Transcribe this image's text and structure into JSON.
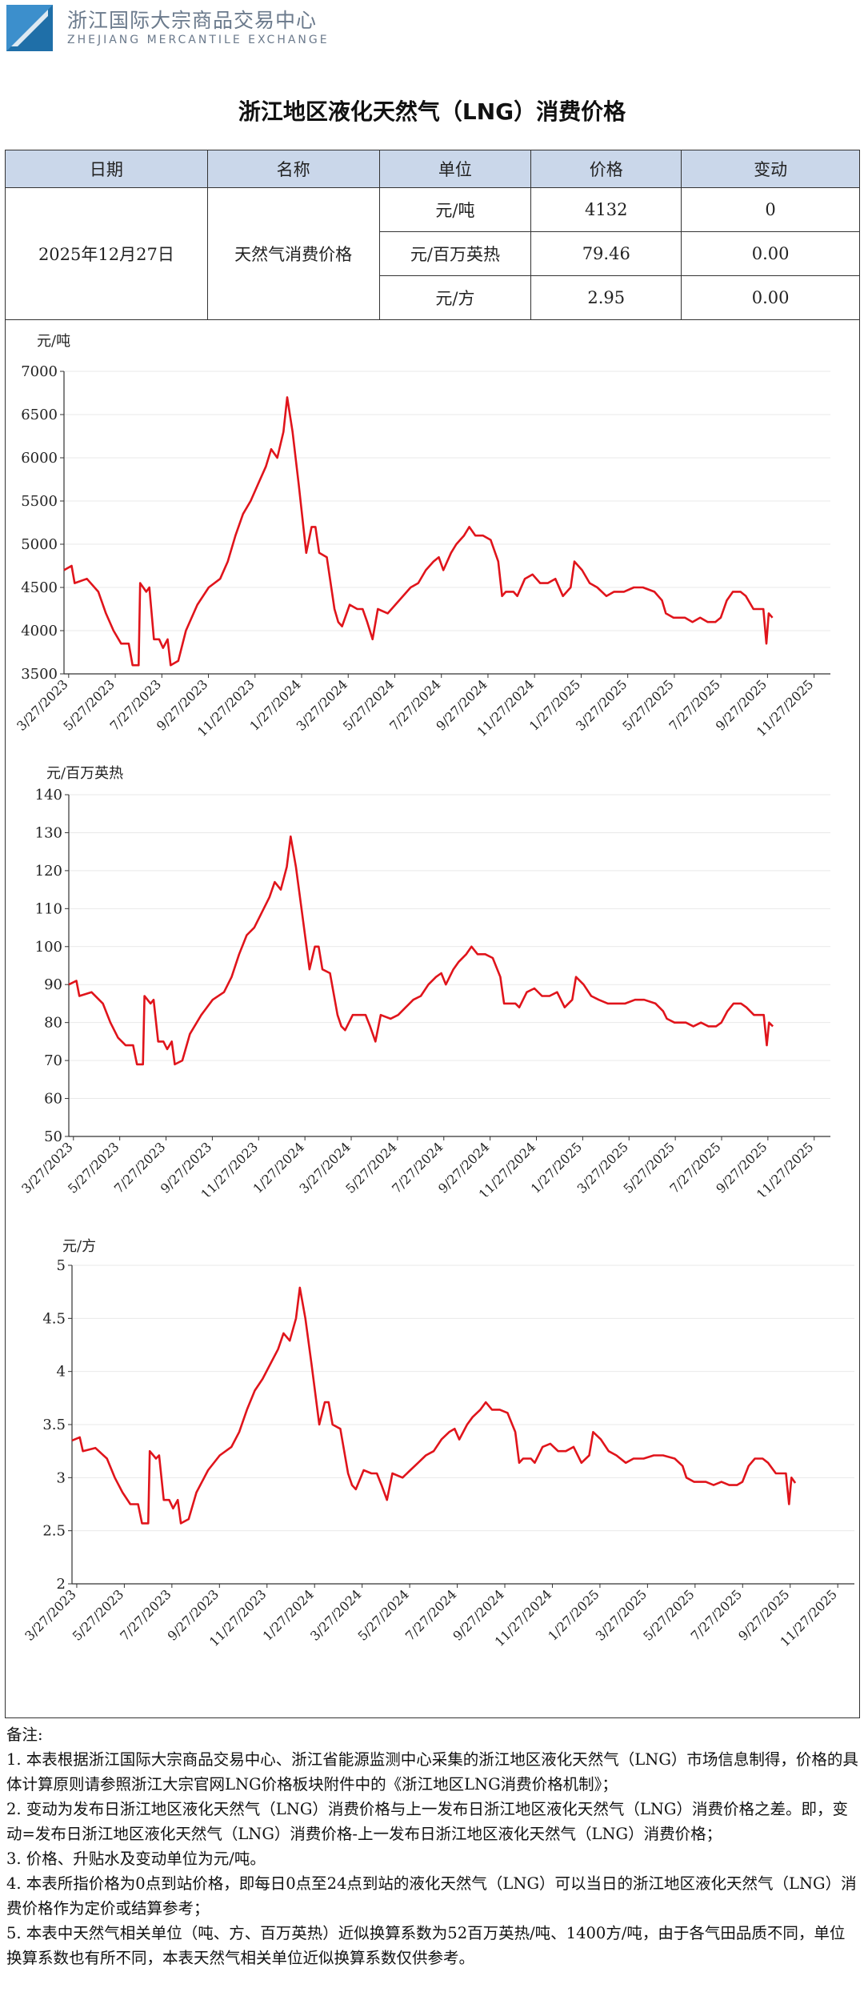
{
  "header": {
    "logo_cn": "浙江国际大宗商品交易中心",
    "logo_en": "ZHEJIANG MERCANTILE EXCHANGE"
  },
  "title": "浙江地区液化天然气（LNG）消费价格",
  "table": {
    "headers": [
      "日期",
      "名称",
      "单位",
      "价格",
      "变动"
    ],
    "date": "2025年12月27日",
    "name": "天然气消费价格",
    "rows": [
      {
        "unit": "元/吨",
        "price": "4132",
        "change": "0"
      },
      {
        "unit": "元/百万英热",
        "price": "79.46",
        "change": "0.00"
      },
      {
        "unit": "元/方",
        "price": "2.95",
        "change": "0.00"
      }
    ]
  },
  "colors": {
    "line": "#e0141b",
    "header_bg": "#cad7ea",
    "logo": "#1f6fa8"
  },
  "chart_data": [
    {
      "type": "line",
      "ylabel": "元/吨",
      "ylim": [
        3500,
        7000
      ],
      "yticks": [
        3500,
        4000,
        4500,
        5000,
        5500,
        6000,
        6500,
        7000
      ],
      "xticks": [
        "3/27/2023",
        "5/27/2023",
        "7/27/2023",
        "9/27/2023",
        "11/27/2023",
        "1/27/2024",
        "3/27/2024",
        "5/27/2024",
        "7/27/2024",
        "9/27/2024",
        "11/27/2024",
        "1/27/2025",
        "3/27/2025",
        "5/27/2025",
        "7/27/2025",
        "9/27/2025",
        "11/27/2025"
      ],
      "xlim": [
        0,
        1006
      ],
      "points": [
        [
          0,
          4700
        ],
        [
          10,
          4750
        ],
        [
          14,
          4550
        ],
        [
          30,
          4600
        ],
        [
          45,
          4450
        ],
        [
          55,
          4200
        ],
        [
          65,
          4000
        ],
        [
          75,
          3850
        ],
        [
          85,
          3850
        ],
        [
          90,
          3600
        ],
        [
          98,
          3600
        ],
        [
          100,
          4550
        ],
        [
          108,
          4450
        ],
        [
          112,
          4500
        ],
        [
          118,
          3900
        ],
        [
          125,
          3900
        ],
        [
          130,
          3800
        ],
        [
          136,
          3900
        ],
        [
          140,
          3600
        ],
        [
          150,
          3650
        ],
        [
          160,
          4000
        ],
        [
          175,
          4300
        ],
        [
          190,
          4500
        ],
        [
          205,
          4600
        ],
        [
          215,
          4800
        ],
        [
          225,
          5100
        ],
        [
          235,
          5350
        ],
        [
          245,
          5500
        ],
        [
          255,
          5700
        ],
        [
          265,
          5900
        ],
        [
          272,
          6100
        ],
        [
          280,
          6000
        ],
        [
          288,
          6300
        ],
        [
          293,
          6700
        ],
        [
          300,
          6300
        ],
        [
          308,
          5700
        ],
        [
          318,
          4900
        ],
        [
          325,
          5200
        ],
        [
          330,
          5200
        ],
        [
          335,
          4900
        ],
        [
          345,
          4850
        ],
        [
          355,
          4250
        ],
        [
          360,
          4100
        ],
        [
          365,
          4050
        ],
        [
          375,
          4300
        ],
        [
          385,
          4250
        ],
        [
          392,
          4250
        ],
        [
          398,
          4100
        ],
        [
          405,
          3900
        ],
        [
          412,
          4250
        ],
        [
          425,
          4200
        ],
        [
          435,
          4300
        ],
        [
          445,
          4400
        ],
        [
          455,
          4500
        ],
        [
          465,
          4550
        ],
        [
          475,
          4700
        ],
        [
          485,
          4800
        ],
        [
          492,
          4850
        ],
        [
          498,
          4700
        ],
        [
          508,
          4900
        ],
        [
          515,
          5000
        ],
        [
          525,
          5100
        ],
        [
          532,
          5200
        ],
        [
          540,
          5100
        ],
        [
          550,
          5100
        ],
        [
          560,
          5050
        ],
        [
          570,
          4800
        ],
        [
          575,
          4400
        ],
        [
          580,
          4450
        ],
        [
          590,
          4450
        ],
        [
          595,
          4400
        ],
        [
          605,
          4600
        ],
        [
          615,
          4650
        ],
        [
          625,
          4550
        ],
        [
          635,
          4550
        ],
        [
          645,
          4600
        ],
        [
          655,
          4400
        ],
        [
          665,
          4500
        ],
        [
          670,
          4800
        ],
        [
          680,
          4700
        ],
        [
          690,
          4550
        ],
        [
          700,
          4500
        ],
        [
          712,
          4400
        ],
        [
          722,
          4450
        ],
        [
          735,
          4450
        ],
        [
          748,
          4500
        ],
        [
          760,
          4500
        ],
        [
          775,
          4450
        ],
        [
          785,
          4350
        ],
        [
          790,
          4200
        ],
        [
          800,
          4150
        ],
        [
          815,
          4150
        ],
        [
          825,
          4100
        ],
        [
          835,
          4150
        ],
        [
          845,
          4100
        ],
        [
          855,
          4100
        ],
        [
          862,
          4150
        ],
        [
          870,
          4350
        ],
        [
          878,
          4450
        ],
        [
          888,
          4450
        ],
        [
          895,
          4400
        ],
        [
          905,
          4250
        ],
        [
          918,
          4250
        ],
        [
          922,
          3850
        ],
        [
          925,
          4200
        ],
        [
          930,
          4150
        ]
      ]
    },
    {
      "type": "line",
      "ylabel": "元/百万英热",
      "ylim": [
        50,
        140
      ],
      "yticks": [
        50,
        60,
        70,
        80,
        90,
        100,
        110,
        120,
        130,
        140
      ],
      "xticks": [
        "3/27/2023",
        "5/27/2023",
        "7/27/2023",
        "9/27/2023",
        "11/27/2023",
        "1/27/2024",
        "3/27/2024",
        "5/27/2024",
        "7/27/2024",
        "9/27/2024",
        "11/27/2024",
        "1/27/2025",
        "3/27/2025",
        "5/27/2025",
        "7/27/2025",
        "9/27/2025",
        "11/27/2025"
      ],
      "xlim": [
        0,
        1006
      ],
      "points": [
        [
          0,
          90
        ],
        [
          10,
          91
        ],
        [
          14,
          87
        ],
        [
          30,
          88
        ],
        [
          45,
          85
        ],
        [
          55,
          80
        ],
        [
          65,
          76
        ],
        [
          75,
          74
        ],
        [
          85,
          74
        ],
        [
          90,
          69
        ],
        [
          98,
          69
        ],
        [
          100,
          87
        ],
        [
          108,
          85
        ],
        [
          112,
          86
        ],
        [
          118,
          75
        ],
        [
          125,
          75
        ],
        [
          130,
          73
        ],
        [
          136,
          75
        ],
        [
          140,
          69
        ],
        [
          150,
          70
        ],
        [
          160,
          77
        ],
        [
          175,
          82
        ],
        [
          190,
          86
        ],
        [
          205,
          88
        ],
        [
          215,
          92
        ],
        [
          225,
          98
        ],
        [
          235,
          103
        ],
        [
          245,
          105
        ],
        [
          255,
          109
        ],
        [
          265,
          113
        ],
        [
          272,
          117
        ],
        [
          280,
          115
        ],
        [
          288,
          121
        ],
        [
          293,
          129
        ],
        [
          300,
          121
        ],
        [
          308,
          109
        ],
        [
          318,
          94
        ],
        [
          325,
          100
        ],
        [
          330,
          100
        ],
        [
          335,
          94
        ],
        [
          345,
          93
        ],
        [
          355,
          82
        ],
        [
          360,
          79
        ],
        [
          365,
          78
        ],
        [
          375,
          82
        ],
        [
          385,
          82
        ],
        [
          392,
          82
        ],
        [
          398,
          79
        ],
        [
          405,
          75
        ],
        [
          412,
          82
        ],
        [
          425,
          81
        ],
        [
          435,
          82
        ],
        [
          445,
          84
        ],
        [
          455,
          86
        ],
        [
          465,
          87
        ],
        [
          475,
          90
        ],
        [
          485,
          92
        ],
        [
          492,
          93
        ],
        [
          498,
          90
        ],
        [
          508,
          94
        ],
        [
          515,
          96
        ],
        [
          525,
          98
        ],
        [
          532,
          100
        ],
        [
          540,
          98
        ],
        [
          550,
          98
        ],
        [
          560,
          97
        ],
        [
          570,
          92
        ],
        [
          575,
          85
        ],
        [
          580,
          85
        ],
        [
          590,
          85
        ],
        [
          595,
          84
        ],
        [
          605,
          88
        ],
        [
          615,
          89
        ],
        [
          625,
          87
        ],
        [
          635,
          87
        ],
        [
          645,
          88
        ],
        [
          655,
          84
        ],
        [
          665,
          86
        ],
        [
          670,
          92
        ],
        [
          680,
          90
        ],
        [
          690,
          87
        ],
        [
          700,
          86
        ],
        [
          712,
          85
        ],
        [
          722,
          85
        ],
        [
          735,
          85
        ],
        [
          748,
          86
        ],
        [
          760,
          86
        ],
        [
          775,
          85
        ],
        [
          785,
          83
        ],
        [
          790,
          81
        ],
        [
          800,
          80
        ],
        [
          815,
          80
        ],
        [
          825,
          79
        ],
        [
          835,
          80
        ],
        [
          845,
          79
        ],
        [
          855,
          79
        ],
        [
          862,
          80
        ],
        [
          870,
          83
        ],
        [
          878,
          85
        ],
        [
          888,
          85
        ],
        [
          895,
          84
        ],
        [
          905,
          82
        ],
        [
          918,
          82
        ],
        [
          922,
          74
        ],
        [
          925,
          80
        ],
        [
          930,
          79
        ]
      ]
    },
    {
      "type": "line",
      "ylabel": "元/方",
      "ylim": [
        2,
        5
      ],
      "yticks": [
        "2",
        "2.5",
        "3",
        "3.5",
        "4",
        "4.5",
        "5"
      ],
      "xticks": [
        "3/27/2023",
        "5/27/2023",
        "7/27/2023",
        "9/27/2023",
        "11/27/2023",
        "1/27/2024",
        "3/27/2024",
        "5/27/2024",
        "7/27/2024",
        "9/27/2024",
        "11/27/2024",
        "1/27/2025",
        "3/27/2025",
        "5/27/2025",
        "7/27/2025",
        "9/27/2025",
        "11/27/2025"
      ],
      "xlim": [
        0,
        1006
      ],
      "points": [
        [
          0,
          3.35
        ],
        [
          10,
          3.38
        ],
        [
          14,
          3.25
        ],
        [
          30,
          3.28
        ],
        [
          45,
          3.18
        ],
        [
          55,
          3.0
        ],
        [
          65,
          2.86
        ],
        [
          75,
          2.75
        ],
        [
          85,
          2.75
        ],
        [
          90,
          2.57
        ],
        [
          98,
          2.57
        ],
        [
          100,
          3.25
        ],
        [
          108,
          3.18
        ],
        [
          112,
          3.21
        ],
        [
          118,
          2.79
        ],
        [
          125,
          2.79
        ],
        [
          130,
          2.71
        ],
        [
          136,
          2.79
        ],
        [
          140,
          2.57
        ],
        [
          150,
          2.61
        ],
        [
          160,
          2.86
        ],
        [
          175,
          3.07
        ],
        [
          190,
          3.21
        ],
        [
          205,
          3.29
        ],
        [
          215,
          3.43
        ],
        [
          225,
          3.64
        ],
        [
          235,
          3.82
        ],
        [
          245,
          3.93
        ],
        [
          255,
          4.07
        ],
        [
          265,
          4.21
        ],
        [
          272,
          4.36
        ],
        [
          280,
          4.29
        ],
        [
          288,
          4.5
        ],
        [
          293,
          4.79
        ],
        [
          300,
          4.5
        ],
        [
          308,
          4.07
        ],
        [
          318,
          3.5
        ],
        [
          325,
          3.71
        ],
        [
          330,
          3.71
        ],
        [
          335,
          3.5
        ],
        [
          345,
          3.46
        ],
        [
          355,
          3.04
        ],
        [
          360,
          2.93
        ],
        [
          365,
          2.89
        ],
        [
          375,
          3.07
        ],
        [
          385,
          3.04
        ],
        [
          392,
          3.04
        ],
        [
          398,
          2.93
        ],
        [
          405,
          2.79
        ],
        [
          412,
          3.04
        ],
        [
          425,
          3.0
        ],
        [
          435,
          3.07
        ],
        [
          445,
          3.14
        ],
        [
          455,
          3.21
        ],
        [
          465,
          3.25
        ],
        [
          475,
          3.36
        ],
        [
          485,
          3.43
        ],
        [
          492,
          3.46
        ],
        [
          498,
          3.36
        ],
        [
          508,
          3.5
        ],
        [
          515,
          3.57
        ],
        [
          525,
          3.64
        ],
        [
          532,
          3.71
        ],
        [
          540,
          3.64
        ],
        [
          550,
          3.64
        ],
        [
          560,
          3.61
        ],
        [
          570,
          3.43
        ],
        [
          575,
          3.14
        ],
        [
          580,
          3.18
        ],
        [
          590,
          3.18
        ],
        [
          595,
          3.14
        ],
        [
          605,
          3.29
        ],
        [
          615,
          3.32
        ],
        [
          625,
          3.25
        ],
        [
          635,
          3.25
        ],
        [
          645,
          3.29
        ],
        [
          655,
          3.14
        ],
        [
          665,
          3.21
        ],
        [
          670,
          3.43
        ],
        [
          680,
          3.36
        ],
        [
          690,
          3.25
        ],
        [
          700,
          3.21
        ],
        [
          712,
          3.14
        ],
        [
          722,
          3.18
        ],
        [
          735,
          3.18
        ],
        [
          748,
          3.21
        ],
        [
          760,
          3.21
        ],
        [
          775,
          3.18
        ],
        [
          785,
          3.11
        ],
        [
          790,
          3.0
        ],
        [
          800,
          2.96
        ],
        [
          815,
          2.96
        ],
        [
          825,
          2.93
        ],
        [
          835,
          2.96
        ],
        [
          845,
          2.93
        ],
        [
          855,
          2.93
        ],
        [
          862,
          2.96
        ],
        [
          870,
          3.11
        ],
        [
          878,
          3.18
        ],
        [
          888,
          3.18
        ],
        [
          895,
          3.14
        ],
        [
          905,
          3.04
        ],
        [
          918,
          3.04
        ],
        [
          922,
          2.75
        ],
        [
          925,
          3.0
        ],
        [
          930,
          2.95
        ]
      ]
    }
  ],
  "notes": [
    "备注:",
    "1. 本表根据浙江国际大宗商品交易中心、浙江省能源监测中心采集的浙江地区液化天然气（LNG）市场信息制得，价格的具体计算原则请参照浙江大宗官网LNG价格板块附件中的《浙江地区LNG消费价格机制》；",
    "2. 变动为发布日浙江地区液化天然气（LNG）消费价格与上一发布日浙江地区液化天然气（LNG）消费价格之差。即，变动=发布日浙江地区液化天然气（LNG）消费价格-上一发布日浙江地区液化天然气（LNG）消费价格；",
    "3. 价格、升贴水及变动单位为元/吨。",
    "4. 本表所指价格为0点到站价格，即每日0点至24点到站的液化天然气（LNG）可以当日的浙江地区液化天然气（LNG）消费价格作为定价或结算参考；",
    "5. 本表中天然气相关单位（吨、方、百万英热）近似换算系数为52百万英热/吨、1400方/吨，由于各气田品质不同，单位换算系数也有所不同，本表天然气相关单位近似换算系数仅供参考。"
  ]
}
